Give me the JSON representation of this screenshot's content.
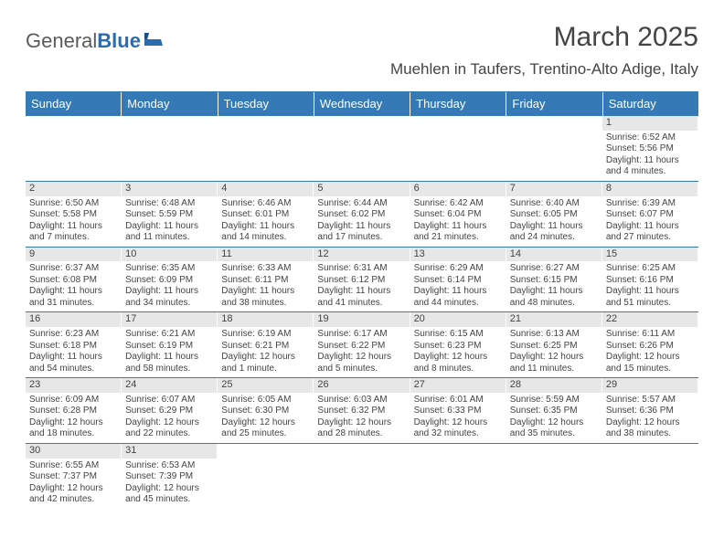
{
  "logo": {
    "text1": "General",
    "text2": "Blue"
  },
  "title": "March 2025",
  "subtitle": "Muehlen in Taufers, Trentino-Alto Adige, Italy",
  "colors": {
    "header_bg": "#357ab7",
    "header_text": "#ffffff",
    "daynum_bg": "#e7e7e7",
    "rule": "#357ab7"
  },
  "calendar": {
    "day_labels": [
      "Sunday",
      "Monday",
      "Tuesday",
      "Wednesday",
      "Thursday",
      "Friday",
      "Saturday"
    ],
    "weeks": [
      [
        null,
        null,
        null,
        null,
        null,
        null,
        {
          "d": "1",
          "sr": "Sunrise: 6:52 AM",
          "ss": "Sunset: 5:56 PM",
          "dl": "Daylight: 11 hours and 4 minutes."
        }
      ],
      [
        {
          "d": "2",
          "sr": "Sunrise: 6:50 AM",
          "ss": "Sunset: 5:58 PM",
          "dl": "Daylight: 11 hours and 7 minutes."
        },
        {
          "d": "3",
          "sr": "Sunrise: 6:48 AM",
          "ss": "Sunset: 5:59 PM",
          "dl": "Daylight: 11 hours and 11 minutes."
        },
        {
          "d": "4",
          "sr": "Sunrise: 6:46 AM",
          "ss": "Sunset: 6:01 PM",
          "dl": "Daylight: 11 hours and 14 minutes."
        },
        {
          "d": "5",
          "sr": "Sunrise: 6:44 AM",
          "ss": "Sunset: 6:02 PM",
          "dl": "Daylight: 11 hours and 17 minutes."
        },
        {
          "d": "6",
          "sr": "Sunrise: 6:42 AM",
          "ss": "Sunset: 6:04 PM",
          "dl": "Daylight: 11 hours and 21 minutes."
        },
        {
          "d": "7",
          "sr": "Sunrise: 6:40 AM",
          "ss": "Sunset: 6:05 PM",
          "dl": "Daylight: 11 hours and 24 minutes."
        },
        {
          "d": "8",
          "sr": "Sunrise: 6:39 AM",
          "ss": "Sunset: 6:07 PM",
          "dl": "Daylight: 11 hours and 27 minutes."
        }
      ],
      [
        {
          "d": "9",
          "sr": "Sunrise: 6:37 AM",
          "ss": "Sunset: 6:08 PM",
          "dl": "Daylight: 11 hours and 31 minutes."
        },
        {
          "d": "10",
          "sr": "Sunrise: 6:35 AM",
          "ss": "Sunset: 6:09 PM",
          "dl": "Daylight: 11 hours and 34 minutes."
        },
        {
          "d": "11",
          "sr": "Sunrise: 6:33 AM",
          "ss": "Sunset: 6:11 PM",
          "dl": "Daylight: 11 hours and 38 minutes."
        },
        {
          "d": "12",
          "sr": "Sunrise: 6:31 AM",
          "ss": "Sunset: 6:12 PM",
          "dl": "Daylight: 11 hours and 41 minutes."
        },
        {
          "d": "13",
          "sr": "Sunrise: 6:29 AM",
          "ss": "Sunset: 6:14 PM",
          "dl": "Daylight: 11 hours and 44 minutes."
        },
        {
          "d": "14",
          "sr": "Sunrise: 6:27 AM",
          "ss": "Sunset: 6:15 PM",
          "dl": "Daylight: 11 hours and 48 minutes."
        },
        {
          "d": "15",
          "sr": "Sunrise: 6:25 AM",
          "ss": "Sunset: 6:16 PM",
          "dl": "Daylight: 11 hours and 51 minutes."
        }
      ],
      [
        {
          "d": "16",
          "sr": "Sunrise: 6:23 AM",
          "ss": "Sunset: 6:18 PM",
          "dl": "Daylight: 11 hours and 54 minutes."
        },
        {
          "d": "17",
          "sr": "Sunrise: 6:21 AM",
          "ss": "Sunset: 6:19 PM",
          "dl": "Daylight: 11 hours and 58 minutes."
        },
        {
          "d": "18",
          "sr": "Sunrise: 6:19 AM",
          "ss": "Sunset: 6:21 PM",
          "dl": "Daylight: 12 hours and 1 minute."
        },
        {
          "d": "19",
          "sr": "Sunrise: 6:17 AM",
          "ss": "Sunset: 6:22 PM",
          "dl": "Daylight: 12 hours and 5 minutes."
        },
        {
          "d": "20",
          "sr": "Sunrise: 6:15 AM",
          "ss": "Sunset: 6:23 PM",
          "dl": "Daylight: 12 hours and 8 minutes."
        },
        {
          "d": "21",
          "sr": "Sunrise: 6:13 AM",
          "ss": "Sunset: 6:25 PM",
          "dl": "Daylight: 12 hours and 11 minutes."
        },
        {
          "d": "22",
          "sr": "Sunrise: 6:11 AM",
          "ss": "Sunset: 6:26 PM",
          "dl": "Daylight: 12 hours and 15 minutes."
        }
      ],
      [
        {
          "d": "23",
          "sr": "Sunrise: 6:09 AM",
          "ss": "Sunset: 6:28 PM",
          "dl": "Daylight: 12 hours and 18 minutes."
        },
        {
          "d": "24",
          "sr": "Sunrise: 6:07 AM",
          "ss": "Sunset: 6:29 PM",
          "dl": "Daylight: 12 hours and 22 minutes."
        },
        {
          "d": "25",
          "sr": "Sunrise: 6:05 AM",
          "ss": "Sunset: 6:30 PM",
          "dl": "Daylight: 12 hours and 25 minutes."
        },
        {
          "d": "26",
          "sr": "Sunrise: 6:03 AM",
          "ss": "Sunset: 6:32 PM",
          "dl": "Daylight: 12 hours and 28 minutes."
        },
        {
          "d": "27",
          "sr": "Sunrise: 6:01 AM",
          "ss": "Sunset: 6:33 PM",
          "dl": "Daylight: 12 hours and 32 minutes."
        },
        {
          "d": "28",
          "sr": "Sunrise: 5:59 AM",
          "ss": "Sunset: 6:35 PM",
          "dl": "Daylight: 12 hours and 35 minutes."
        },
        {
          "d": "29",
          "sr": "Sunrise: 5:57 AM",
          "ss": "Sunset: 6:36 PM",
          "dl": "Daylight: 12 hours and 38 minutes."
        }
      ],
      [
        {
          "d": "30",
          "sr": "Sunrise: 6:55 AM",
          "ss": "Sunset: 7:37 PM",
          "dl": "Daylight: 12 hours and 42 minutes."
        },
        {
          "d": "31",
          "sr": "Sunrise: 6:53 AM",
          "ss": "Sunset: 7:39 PM",
          "dl": "Daylight: 12 hours and 45 minutes."
        },
        null,
        null,
        null,
        null,
        null
      ]
    ]
  }
}
